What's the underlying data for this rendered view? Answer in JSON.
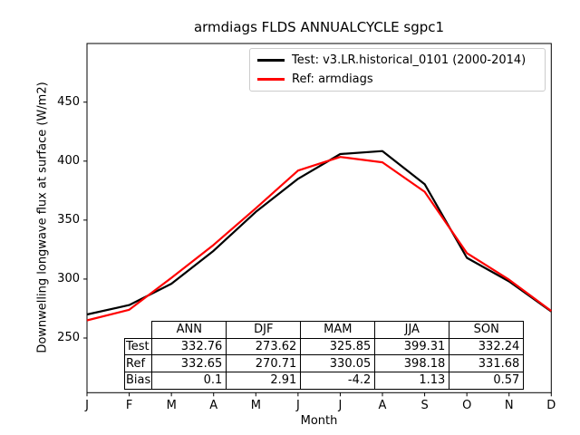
{
  "chart_data": {
    "type": "line",
    "title": "armdiags FLDS ANNUALCYCLE sgpc1",
    "xlabel": "Month",
    "ylabel": "Downwelling longwave flux at surface (W/m2)",
    "x_ticklabels": [
      "J",
      "F",
      "M",
      "A",
      "M",
      "J",
      "J",
      "A",
      "S",
      "O",
      "N",
      "D"
    ],
    "y_ticks": [
      250,
      300,
      350,
      400,
      450
    ],
    "ylim": [
      204,
      500
    ],
    "grid": false,
    "legend_position": "upper right",
    "series": [
      {
        "name": "Test: v3.LR.historical_0101 (2000-2014)",
        "color": "#000000",
        "values": [
          270,
          278,
          296,
          324,
          357,
          385,
          406,
          408.5,
          380.5,
          318,
          298,
          272.5
        ]
      },
      {
        "name": "Ref: armdiags",
        "color": "#ff0000",
        "values": [
          265,
          274,
          301,
          329,
          360,
          392,
          403.5,
          399,
          374,
          322,
          299.5,
          273
        ]
      }
    ]
  },
  "stats_table": {
    "columns": [
      "ANN",
      "DJF",
      "MAM",
      "JJA",
      "SON"
    ],
    "rows": [
      {
        "label": "Test",
        "values": [
          "332.76",
          "273.62",
          "325.85",
          "399.31",
          "332.24"
        ]
      },
      {
        "label": "Ref",
        "values": [
          "332.65",
          "270.71",
          "330.05",
          "398.18",
          "331.68"
        ]
      },
      {
        "label": "Bias",
        "values": [
          "0.1",
          "2.91",
          "-4.2",
          "1.13",
          "0.57"
        ]
      }
    ]
  }
}
